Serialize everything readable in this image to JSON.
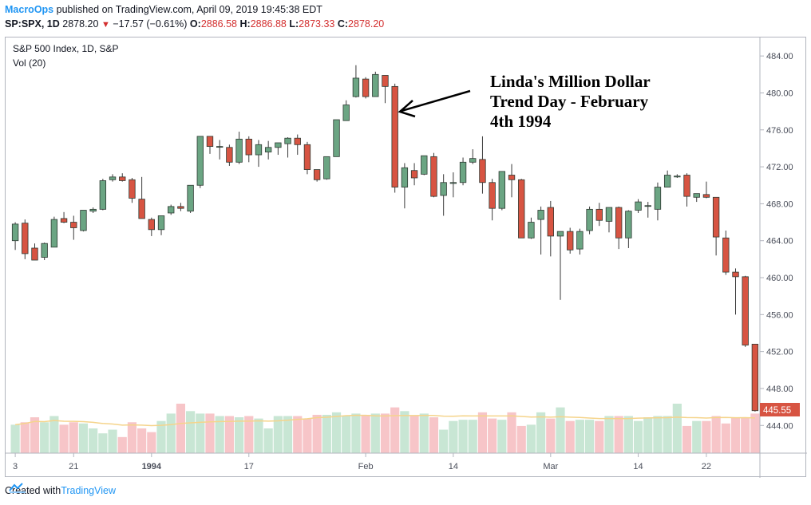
{
  "header": {
    "publisher": "MacroOps",
    "published_text": " published on TradingView.com, April 09, 2019 19:45:38 EDT",
    "symbol": "SP:SPX, 1D",
    "last_price": "2878.20",
    "change": "−17.57 (−0.61%)",
    "o_label": "O:",
    "o_value": "2886.58",
    "h_label": "H:",
    "h_value": "2886.88",
    "l_label": "L:",
    "l_value": "2873.33",
    "c_label": "C:",
    "c_value": "2878.20"
  },
  "legend": {
    "series_title": "S&P 500 Index, 1D, S&P",
    "volume_title": "Vol (20)"
  },
  "annotation": {
    "line1": "Linda's Million Dollar",
    "line2": "Trend Day - February",
    "line3": "4th 1994"
  },
  "last_value_label": "445.55",
  "footer": {
    "created_with": "Created with",
    "brand": "TradingView"
  },
  "colors": {
    "up": "#6ba583",
    "down": "#d75442",
    "vol_up": "#c8e6d4",
    "vol_down": "#f7c5c8",
    "ma_line": "#f5d48b",
    "accent": "#2196f3"
  },
  "chart_data": {
    "type": "candlestick",
    "ylim": [
      441,
      486
    ],
    "yticks": [
      444,
      448,
      452,
      456,
      460,
      464,
      468,
      472,
      476,
      480,
      484
    ],
    "ytick_labels": [
      "444.00",
      "448.00",
      "452.00",
      "456.00",
      "460.00",
      "464.00",
      "468.00",
      "472.00",
      "476.00",
      "480.00",
      "484.00"
    ],
    "xticks": [
      {
        "index": 0,
        "label": "3"
      },
      {
        "index": 6,
        "label": "21"
      },
      {
        "index": 14,
        "label": "1994"
      },
      {
        "index": 24,
        "label": "17"
      },
      {
        "index": 36,
        "label": "Feb"
      },
      {
        "index": 45,
        "label": "14"
      },
      {
        "index": 55,
        "label": "Mar"
      },
      {
        "index": 64,
        "label": "14"
      },
      {
        "index": 71,
        "label": "22"
      }
    ],
    "candles": [
      {
        "o": 464.0,
        "h": 466.0,
        "l": 463.0,
        "c": 465.8
      },
      {
        "o": 465.9,
        "h": 466.3,
        "l": 462.0,
        "c": 462.6
      },
      {
        "o": 463.2,
        "h": 463.7,
        "l": 461.9,
        "c": 461.9
      },
      {
        "o": 462.2,
        "h": 463.8,
        "l": 461.9,
        "c": 463.7
      },
      {
        "o": 463.3,
        "h": 466.6,
        "l": 463.3,
        "c": 466.3
      },
      {
        "o": 466.4,
        "h": 467.1,
        "l": 465.9,
        "c": 466.0
      },
      {
        "o": 466.0,
        "h": 466.7,
        "l": 464.1,
        "c": 465.4
      },
      {
        "o": 465.1,
        "h": 467.3,
        "l": 465.0,
        "c": 467.3
      },
      {
        "o": 467.2,
        "h": 467.6,
        "l": 467.0,
        "c": 467.4
      },
      {
        "o": 467.4,
        "h": 470.7,
        "l": 467.3,
        "c": 470.5
      },
      {
        "o": 470.6,
        "h": 471.2,
        "l": 470.4,
        "c": 470.9
      },
      {
        "o": 470.9,
        "h": 471.3,
        "l": 470.4,
        "c": 470.5
      },
      {
        "o": 470.6,
        "h": 470.8,
        "l": 468.1,
        "c": 468.6
      },
      {
        "o": 468.5,
        "h": 470.9,
        "l": 466.4,
        "c": 466.4
      },
      {
        "o": 466.3,
        "h": 466.5,
        "l": 464.5,
        "c": 465.2
      },
      {
        "o": 465.2,
        "h": 466.7,
        "l": 464.6,
        "c": 466.7
      },
      {
        "o": 467.0,
        "h": 467.9,
        "l": 466.8,
        "c": 467.7
      },
      {
        "o": 467.7,
        "h": 468.1,
        "l": 467.2,
        "c": 467.5
      },
      {
        "o": 467.2,
        "h": 470.0,
        "l": 467.0,
        "c": 470.0
      },
      {
        "o": 470.0,
        "h": 475.3,
        "l": 469.7,
        "c": 475.3
      },
      {
        "o": 475.3,
        "h": 475.3,
        "l": 473.4,
        "c": 474.2
      },
      {
        "o": 474.2,
        "h": 474.9,
        "l": 472.8,
        "c": 474.2
      },
      {
        "o": 474.1,
        "h": 474.4,
        "l": 472.1,
        "c": 472.5
      },
      {
        "o": 472.5,
        "h": 475.8,
        "l": 472.3,
        "c": 475.0
      },
      {
        "o": 475.0,
        "h": 475.3,
        "l": 472.5,
        "c": 473.3
      },
      {
        "o": 473.3,
        "h": 474.9,
        "l": 472.0,
        "c": 474.4
      },
      {
        "o": 473.6,
        "h": 474.8,
        "l": 472.8,
        "c": 474.1
      },
      {
        "o": 474.1,
        "h": 474.5,
        "l": 473.3,
        "c": 474.6
      },
      {
        "o": 474.5,
        "h": 475.2,
        "l": 473.0,
        "c": 475.1
      },
      {
        "o": 475.1,
        "h": 475.5,
        "l": 473.3,
        "c": 474.4
      },
      {
        "o": 474.4,
        "h": 474.7,
        "l": 471.2,
        "c": 471.7
      },
      {
        "o": 471.7,
        "h": 471.7,
        "l": 470.4,
        "c": 470.6
      },
      {
        "o": 470.7,
        "h": 473.1,
        "l": 470.6,
        "c": 473.1
      },
      {
        "o": 473.1,
        "h": 477.1,
        "l": 473.1,
        "c": 477.1
      },
      {
        "o": 477.0,
        "h": 479.2,
        "l": 477.0,
        "c": 478.7
      },
      {
        "o": 479.6,
        "h": 483.0,
        "l": 479.5,
        "c": 481.6
      },
      {
        "o": 481.5,
        "h": 481.7,
        "l": 479.4,
        "c": 479.6
      },
      {
        "o": 479.6,
        "h": 482.3,
        "l": 479.6,
        "c": 482.0
      },
      {
        "o": 481.9,
        "h": 481.9,
        "l": 478.9,
        "c": 480.7
      },
      {
        "o": 480.7,
        "h": 481.0,
        "l": 469.2,
        "c": 469.8
      },
      {
        "o": 469.8,
        "h": 472.4,
        "l": 467.5,
        "c": 471.9
      },
      {
        "o": 471.6,
        "h": 472.4,
        "l": 470.0,
        "c": 470.8
      },
      {
        "o": 471.2,
        "h": 473.2,
        "l": 471.1,
        "c": 473.2
      },
      {
        "o": 473.1,
        "h": 473.5,
        "l": 468.7,
        "c": 468.8
      },
      {
        "o": 468.9,
        "h": 471.2,
        "l": 466.7,
        "c": 470.3
      },
      {
        "o": 470.2,
        "h": 471.4,
        "l": 468.7,
        "c": 470.3
      },
      {
        "o": 470.3,
        "h": 473.0,
        "l": 470.0,
        "c": 472.5
      },
      {
        "o": 472.5,
        "h": 473.9,
        "l": 472.3,
        "c": 472.9
      },
      {
        "o": 472.8,
        "h": 475.3,
        "l": 469.1,
        "c": 470.3
      },
      {
        "o": 470.3,
        "h": 470.7,
        "l": 466.2,
        "c": 467.5
      },
      {
        "o": 467.5,
        "h": 471.5,
        "l": 467.3,
        "c": 471.5
      },
      {
        "o": 471.1,
        "h": 472.3,
        "l": 468.7,
        "c": 470.6
      },
      {
        "o": 470.6,
        "h": 470.7,
        "l": 464.3,
        "c": 464.3
      },
      {
        "o": 464.3,
        "h": 466.5,
        "l": 464.2,
        "c": 466.0
      },
      {
        "o": 466.3,
        "h": 467.7,
        "l": 462.5,
        "c": 467.3
      },
      {
        "o": 467.6,
        "h": 468.3,
        "l": 462.3,
        "c": 464.5
      },
      {
        "o": 464.5,
        "h": 465.0,
        "l": 457.6,
        "c": 465.0
      },
      {
        "o": 465.0,
        "h": 465.4,
        "l": 462.6,
        "c": 463.0
      },
      {
        "o": 463.1,
        "h": 465.3,
        "l": 462.5,
        "c": 465.0
      },
      {
        "o": 465.1,
        "h": 467.7,
        "l": 464.7,
        "c": 467.4
      },
      {
        "o": 467.4,
        "h": 468.1,
        "l": 465.6,
        "c": 466.2
      },
      {
        "o": 466.1,
        "h": 467.6,
        "l": 464.9,
        "c": 467.6
      },
      {
        "o": 467.6,
        "h": 467.7,
        "l": 463.1,
        "c": 464.3
      },
      {
        "o": 464.3,
        "h": 467.3,
        "l": 463.2,
        "c": 467.2
      },
      {
        "o": 467.3,
        "h": 468.5,
        "l": 467.0,
        "c": 468.2
      },
      {
        "o": 467.8,
        "h": 468.2,
        "l": 466.5,
        "c": 467.8
      },
      {
        "o": 467.4,
        "h": 470.3,
        "l": 466.2,
        "c": 469.8
      },
      {
        "o": 469.8,
        "h": 471.6,
        "l": 469.8,
        "c": 471.1
      },
      {
        "o": 470.9,
        "h": 471.2,
        "l": 470.8,
        "c": 471.0
      },
      {
        "o": 471.1,
        "h": 471.3,
        "l": 467.7,
        "c": 468.8
      },
      {
        "o": 468.7,
        "h": 469.1,
        "l": 468.2,
        "c": 469.1
      },
      {
        "o": 469.0,
        "h": 470.4,
        "l": 468.6,
        "c": 468.7
      },
      {
        "o": 468.7,
        "h": 468.7,
        "l": 462.4,
        "c": 464.4
      },
      {
        "o": 464.3,
        "h": 465.1,
        "l": 460.3,
        "c": 460.6
      },
      {
        "o": 460.6,
        "h": 461.0,
        "l": 456.0,
        "c": 460.1
      },
      {
        "o": 460.1,
        "h": 460.2,
        "l": 452.5,
        "c": 452.7
      },
      {
        "o": 452.8,
        "h": 452.8,
        "l": 445.5,
        "c": 445.6
      }
    ],
    "volume": [
      2.3,
      2.5,
      2.9,
      2.5,
      3.0,
      2.3,
      2.5,
      2.4,
      2.0,
      1.6,
      1.9,
      1.3,
      2.5,
      2.0,
      1.7,
      2.6,
      3.2,
      4.0,
      3.4,
      3.2,
      3.2,
      3.0,
      3.0,
      2.9,
      3.0,
      2.8,
      2.0,
      3.0,
      3.0,
      3.0,
      2.8,
      3.1,
      3.1,
      3.3,
      3.0,
      3.2,
      3.1,
      3.2,
      3.2,
      3.7,
      3.4,
      3.0,
      3.2,
      2.9,
      1.9,
      2.6,
      2.7,
      2.7,
      3.3,
      2.8,
      2.7,
      3.3,
      2.2,
      2.3,
      3.3,
      2.8,
      3.7,
      2.6,
      2.7,
      2.7,
      2.6,
      3.0,
      3.0,
      3.0,
      2.6,
      2.9,
      3.0,
      3.0,
      4.0,
      2.2,
      2.6,
      2.6,
      3.0,
      2.4,
      2.9,
      2.9,
      3.2
    ]
  }
}
